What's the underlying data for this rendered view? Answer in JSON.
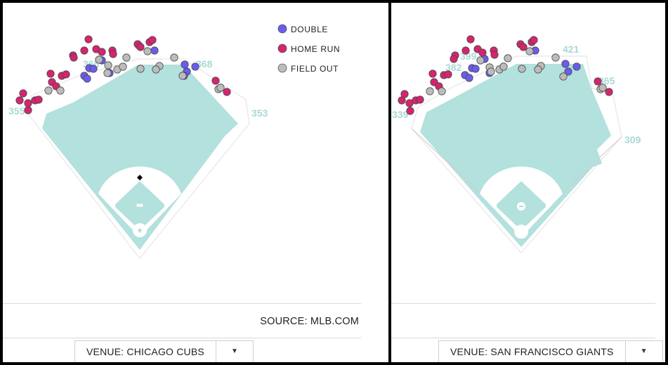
{
  "legend": [
    {
      "label": "DOUBLE",
      "color": "#6b5cf0"
    },
    {
      "label": "HOME RUN",
      "color": "#d6246e"
    },
    {
      "label": "FIELD OUT",
      "color": "#bcbcbc"
    }
  ],
  "source": "SOURCE: MLB.COM",
  "left": {
    "venue": "VENUE: CHICAGO CUBS",
    "distances": [
      "355",
      "368",
      "353",
      "368"
    ]
  },
  "right": {
    "venue": "VENUE: SAN FRANCISCO GIANTS",
    "distances": [
      "339",
      "382",
      "399",
      "421",
      "365",
      "309"
    ]
  },
  "chart_data": [
    {
      "type": "scatter",
      "title": "",
      "series": [
        {
          "name": "DOUBLE",
          "color": "#6b5cf0",
          "points": [
            [
              145,
              86
            ],
            [
              127,
              97
            ],
            [
              133,
              98
            ],
            [
              120,
              108
            ],
            [
              124,
              112
            ],
            [
              156,
              104
            ],
            [
              199,
              66
            ],
            [
              220,
              72
            ],
            [
              263,
              92
            ],
            [
              266,
              102
            ],
            [
              278,
              95
            ],
            [
              262,
              108
            ]
          ]
        },
        {
          "name": "HOME RUN",
          "color": "#d6246e",
          "points": [
            [
              126,
              56
            ],
            [
              104,
              79
            ],
            [
              105,
              82
            ],
            [
              120,
              72
            ],
            [
              137,
              70
            ],
            [
              145,
              74
            ],
            [
              160,
              72
            ],
            [
              161,
              77
            ],
            [
              72,
              105
            ],
            [
              88,
              108
            ],
            [
              94,
              106
            ],
            [
              74,
              117
            ],
            [
              80,
              123
            ],
            [
              33,
              133
            ],
            [
              28,
              143
            ],
            [
              40,
              147
            ],
            [
              40,
              157
            ],
            [
              50,
              143
            ],
            [
              55,
              142
            ],
            [
              196,
              63
            ],
            [
              200,
              67
            ],
            [
              213,
              60
            ],
            [
              217,
              57
            ],
            [
              307,
              115
            ],
            [
              323,
              131
            ]
          ]
        },
        {
          "name": "FIELD OUT",
          "color": "#bcbcbc",
          "points": [
            [
              141,
              85
            ],
            [
              154,
              93
            ],
            [
              153,
              104
            ],
            [
              167,
              99
            ],
            [
              175,
              95
            ],
            [
              180,
              82
            ],
            [
              210,
              73
            ],
            [
              200,
              98
            ],
            [
              227,
              94
            ],
            [
              222,
              99
            ],
            [
              248,
              82
            ],
            [
              260,
              108
            ],
            [
              86,
              129
            ],
            [
              69,
              129
            ],
            [
              311,
              127
            ],
            [
              314,
              125
            ]
          ]
        }
      ]
    },
    {
      "type": "scatter",
      "title": "",
      "series": [
        {
          "name": "DOUBLE",
          "color": "#6b5cf0",
          "points": [
            [
              672,
              97
            ],
            [
              677,
              98
            ],
            [
              662,
              107
            ],
            [
              668,
              111
            ],
            [
              690,
              84
            ],
            [
              697,
              104
            ],
            [
              762,
              72
            ],
            [
              805,
              91
            ],
            [
              821,
              95
            ],
            [
              809,
              102
            ]
          ]
        },
        {
          "name": "HOME RUN",
          "color": "#d6246e",
          "points": [
            [
              670,
              56
            ],
            [
              648,
              79
            ],
            [
              646,
              84
            ],
            [
              663,
              72
            ],
            [
              680,
              70
            ],
            [
              687,
              75
            ],
            [
              703,
              72
            ],
            [
              704,
              78
            ],
            [
              741,
              63
            ],
            [
              745,
              67
            ],
            [
              757,
              60
            ],
            [
              760,
              57
            ],
            [
              616,
              105
            ],
            [
              632,
              107
            ],
            [
              638,
              106
            ],
            [
              618,
              117
            ],
            [
              625,
              123
            ],
            [
              576,
              134
            ],
            [
              572,
              143
            ],
            [
              583,
              147
            ],
            [
              584,
              158
            ],
            [
              592,
              143
            ],
            [
              598,
              142
            ],
            [
              851,
              116
            ],
            [
              867,
              131
            ]
          ]
        },
        {
          "name": "FIELD OUT",
          "color": "#bcbcbc",
          "points": [
            [
              684,
              86
            ],
            [
              697,
              96
            ],
            [
              699,
              102
            ],
            [
              711,
              99
            ],
            [
              717,
              95
            ],
            [
              723,
              83
            ],
            [
              754,
              73
            ],
            [
              743,
              98
            ],
            [
              770,
              94
            ],
            [
              766,
              99
            ],
            [
              791,
              82
            ],
            [
              802,
              109
            ],
            [
              629,
              130
            ],
            [
              612,
              130
            ],
            [
              855,
              127
            ],
            [
              858,
              125
            ]
          ]
        }
      ]
    }
  ]
}
